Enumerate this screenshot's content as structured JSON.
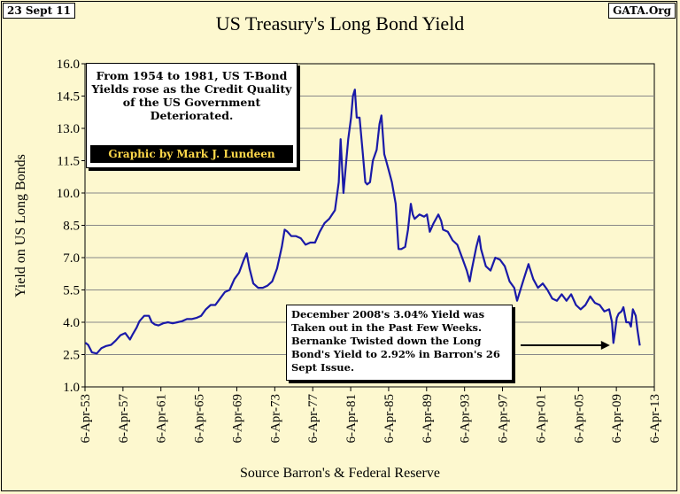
{
  "header": {
    "date": "23 Sept 11",
    "source_tag": "GATA.Org"
  },
  "footer": {
    "source": "Source Barron's & Federal Reserve"
  },
  "annotations": {
    "top_note": "From 1954 to 1981, US T-Bond Yields rose as the Credit Quality of the US Government Deteriorated.",
    "credit": "Graphic by Mark J. Lundeen",
    "bottom_note": "December 2008's 3.04% Yield was Taken out in the Past Few Weeks.  Bernanke Twisted down the Long Bond's Yield to 2.92% in Barron's 26 Sept Issue."
  },
  "colors": {
    "background": "#fdf8cf",
    "line": "#1a1aa8",
    "grid": "#888888"
  },
  "chart_data": {
    "type": "line",
    "title": "US Treasury's Long Bond Yield",
    "xlabel": "",
    "ylabel": "Yield on US Long Bonds",
    "ylim": [
      1.0,
      16.0
    ],
    "yticks": [
      "1.0",
      "2.5",
      "4.0",
      "5.5",
      "7.0",
      "8.5",
      "10.0",
      "11.5",
      "13.0",
      "14.5",
      "16.0"
    ],
    "xlim": [
      1953.26,
      2013.26
    ],
    "xticks": [
      {
        "label": "6-Apr-53",
        "year": 1953.26
      },
      {
        "label": "6-Apr-57",
        "year": 1957.26
      },
      {
        "label": "6-Apr-61",
        "year": 1961.26
      },
      {
        "label": "6-Apr-65",
        "year": 1965.26
      },
      {
        "label": "6-Apr-69",
        "year": 1969.26
      },
      {
        "label": "6-Apr-73",
        "year": 1973.26
      },
      {
        "label": "6-Apr-77",
        "year": 1977.26
      },
      {
        "label": "6-Apr-81",
        "year": 1981.26
      },
      {
        "label": "6-Apr-85",
        "year": 1985.26
      },
      {
        "label": "6-Apr-89",
        "year": 1989.26
      },
      {
        "label": "6-Apr-93",
        "year": 1993.26
      },
      {
        "label": "6-Apr-97",
        "year": 1997.26
      },
      {
        "label": "6-Apr-01",
        "year": 2001.26
      },
      {
        "label": "6-Apr-05",
        "year": 2005.26
      },
      {
        "label": "6-Apr-09",
        "year": 2009.26
      },
      {
        "label": "6-Apr-13",
        "year": 2013.26
      }
    ],
    "grid": "horizontal",
    "series": [
      {
        "name": "Long Bond Yield",
        "x": [
          1953.3,
          1953.6,
          1954.0,
          1954.5,
          1955.0,
          1955.5,
          1956.0,
          1956.5,
          1957.0,
          1957.5,
          1958.0,
          1958.3,
          1958.7,
          1959.0,
          1959.5,
          1960.0,
          1960.3,
          1960.6,
          1961.0,
          1961.5,
          1962.0,
          1962.5,
          1963.0,
          1963.5,
          1964.0,
          1964.5,
          1965.0,
          1965.5,
          1966.0,
          1966.5,
          1967.0,
          1967.5,
          1968.0,
          1968.5,
          1969.0,
          1969.5,
          1970.0,
          1970.3,
          1970.6,
          1971.0,
          1971.5,
          1972.0,
          1972.5,
          1973.0,
          1973.5,
          1974.0,
          1974.3,
          1974.6,
          1975.0,
          1975.5,
          1976.0,
          1976.5,
          1977.0,
          1977.5,
          1978.0,
          1978.5,
          1979.0,
          1979.3,
          1979.6,
          1980.0,
          1980.2,
          1980.5,
          1980.8,
          1981.0,
          1981.3,
          1981.5,
          1981.7,
          1981.9,
          1982.2,
          1982.5,
          1982.8,
          1983.0,
          1983.3,
          1983.6,
          1984.0,
          1984.3,
          1984.5,
          1984.8,
          1985.0,
          1985.3,
          1985.6,
          1986.0,
          1986.3,
          1986.6,
          1987.0,
          1987.3,
          1987.6,
          1987.8,
          1988.0,
          1988.5,
          1989.0,
          1989.3,
          1989.6,
          1990.0,
          1990.5,
          1990.8,
          1991.0,
          1991.5,
          1992.0,
          1992.5,
          1993.0,
          1993.5,
          1993.8,
          1994.0,
          1994.5,
          1994.8,
          1995.0,
          1995.5,
          1996.0,
          1996.5,
          1997.0,
          1997.5,
          1998.0,
          1998.5,
          1998.8,
          1999.0,
          1999.5,
          2000.0,
          2000.5,
          2001.0,
          2001.5,
          2002.0,
          2002.5,
          2003.0,
          2003.5,
          2004.0,
          2004.5,
          2005.0,
          2005.5,
          2006.0,
          2006.5,
          2007.0,
          2007.5,
          2008.0,
          2008.5,
          2008.8,
          2008.95,
          2009.1,
          2009.3,
          2009.5,
          2009.8,
          2010.0,
          2010.3,
          2010.6,
          2010.8,
          2011.0,
          2011.3,
          2011.5,
          2011.73
        ],
        "y": [
          3.05,
          2.95,
          2.6,
          2.55,
          2.8,
          2.9,
          2.95,
          3.15,
          3.4,
          3.5,
          3.2,
          3.45,
          3.75,
          4.05,
          4.3,
          4.3,
          4.0,
          3.9,
          3.85,
          3.95,
          4.0,
          3.95,
          4.0,
          4.05,
          4.15,
          4.15,
          4.2,
          4.3,
          4.6,
          4.8,
          4.8,
          5.1,
          5.4,
          5.5,
          6.0,
          6.3,
          6.9,
          7.2,
          6.5,
          5.8,
          5.6,
          5.6,
          5.7,
          5.9,
          6.5,
          7.5,
          8.3,
          8.2,
          8.0,
          8.0,
          7.9,
          7.6,
          7.7,
          7.7,
          8.2,
          8.6,
          8.8,
          9.0,
          9.2,
          10.5,
          12.5,
          10.0,
          11.5,
          12.5,
          13.5,
          14.5,
          14.8,
          13.5,
          13.5,
          12.0,
          10.5,
          10.4,
          10.5,
          11.5,
          12.0,
          13.2,
          13.6,
          11.8,
          11.5,
          11.0,
          10.5,
          9.5,
          7.4,
          7.4,
          7.5,
          8.3,
          9.5,
          9.0,
          8.8,
          9.0,
          8.9,
          9.0,
          8.2,
          8.6,
          9.0,
          8.7,
          8.3,
          8.2,
          7.8,
          7.6,
          7.0,
          6.4,
          5.9,
          6.4,
          7.5,
          8.0,
          7.4,
          6.6,
          6.4,
          7.0,
          6.9,
          6.6,
          5.9,
          5.6,
          5.0,
          5.3,
          6.0,
          6.7,
          6.0,
          5.6,
          5.8,
          5.5,
          5.1,
          5.0,
          5.3,
          5.0,
          5.3,
          4.8,
          4.6,
          4.8,
          5.2,
          4.9,
          4.8,
          4.5,
          4.6,
          4.0,
          3.04,
          3.5,
          4.2,
          4.4,
          4.5,
          4.7,
          4.0,
          4.0,
          3.8,
          4.6,
          4.3,
          3.6,
          2.92
        ]
      }
    ],
    "annotations": [
      {
        "text": "December 2008's 3.04% Yield",
        "value": 3.04,
        "year": 2008.95
      },
      {
        "text": "Bernanke Twisted down the Long Bond's Yield to 2.92%",
        "value": 2.92,
        "year": 2011.73
      }
    ]
  }
}
